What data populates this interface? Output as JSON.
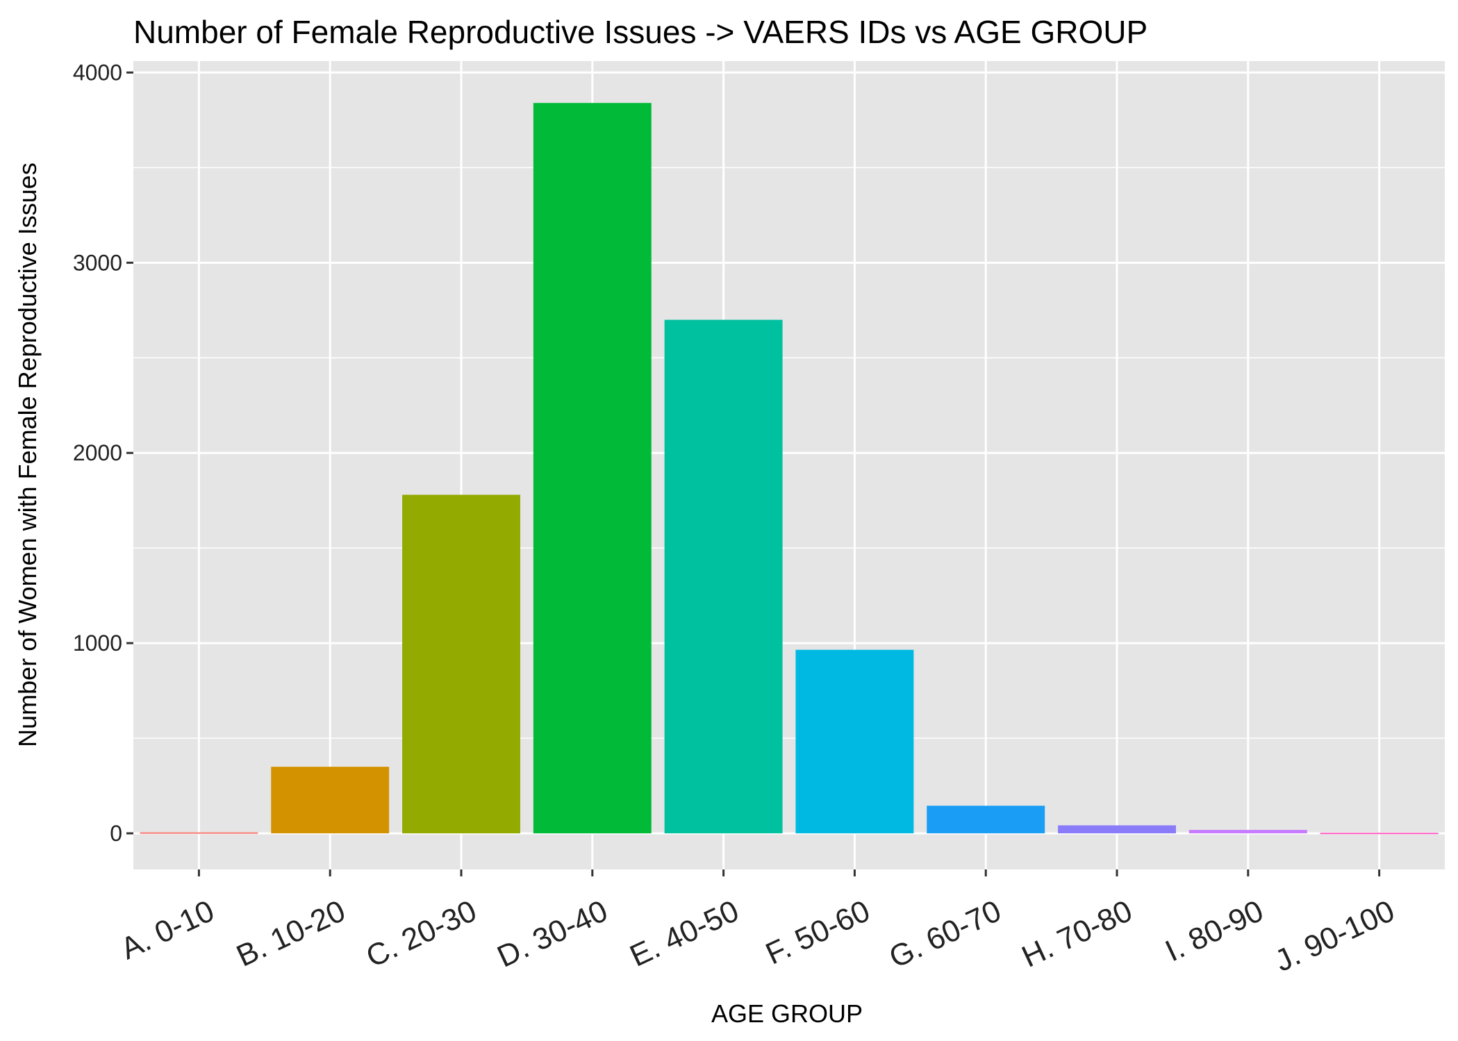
{
  "chart_data": {
    "type": "bar",
    "title": "Number of Female Reproductive Issues -> VAERS IDs vs AGE GROUP",
    "xlabel": "AGE GROUP",
    "ylabel": "Number of Women with Female Reproductive Issues",
    "categories": [
      "A. 0-10",
      "B. 10-20",
      "C. 20-30",
      "D. 30-40",
      "E. 40-50",
      "F. 50-60",
      "G. 60-70",
      "H. 70-80",
      "I. 80-90",
      "J. 90-100"
    ],
    "values": [
      5,
      350,
      1780,
      3840,
      2700,
      965,
      145,
      42,
      18,
      3
    ],
    "colors": [
      "#F8766D",
      "#D39200",
      "#93AA00",
      "#00BA38",
      "#00C19F",
      "#00B9E3",
      "#1A9EF5",
      "#8A7CF9",
      "#C77CFF",
      "#FF61C3"
    ],
    "ylim": [
      -190,
      4060
    ],
    "yticks": [
      0,
      1000,
      2000,
      3000,
      4000
    ],
    "grid": true,
    "panel_background": "#E5E5E5",
    "legend": "none"
  }
}
